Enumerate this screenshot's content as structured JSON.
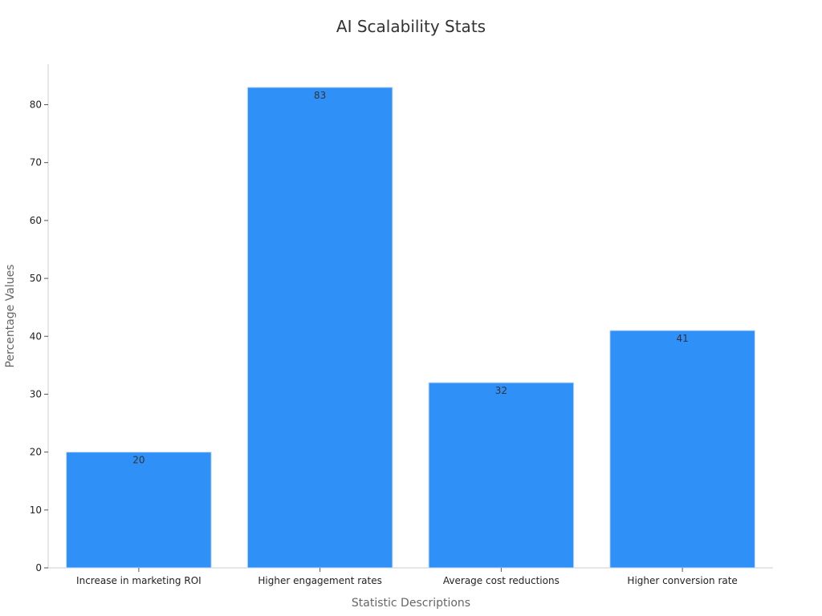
{
  "chart_data": {
    "type": "bar",
    "title": "AI Scalability Stats",
    "xlabel": "Statistic Descriptions",
    "ylabel": "Percentage Values",
    "categories": [
      "Increase in marketing ROI",
      "Higher engagement rates",
      "Average cost reductions",
      "Higher conversion rate"
    ],
    "values": [
      20,
      83,
      32,
      41
    ],
    "data_labels": [
      "20",
      "83",
      "32",
      "41"
    ],
    "ylim": [
      0,
      87
    ],
    "yticks": [
      0,
      10,
      20,
      30,
      40,
      50,
      60,
      70,
      80
    ],
    "ytick_labels": [
      "0",
      "10",
      "20",
      "30",
      "40",
      "50",
      "60",
      "70",
      "80"
    ],
    "grid": false,
    "legend": "none",
    "colors": {
      "bar": "#2f91f8",
      "bar_edge": "#c9ddf5",
      "axis": "#cccccc",
      "tick": "#555555"
    }
  }
}
